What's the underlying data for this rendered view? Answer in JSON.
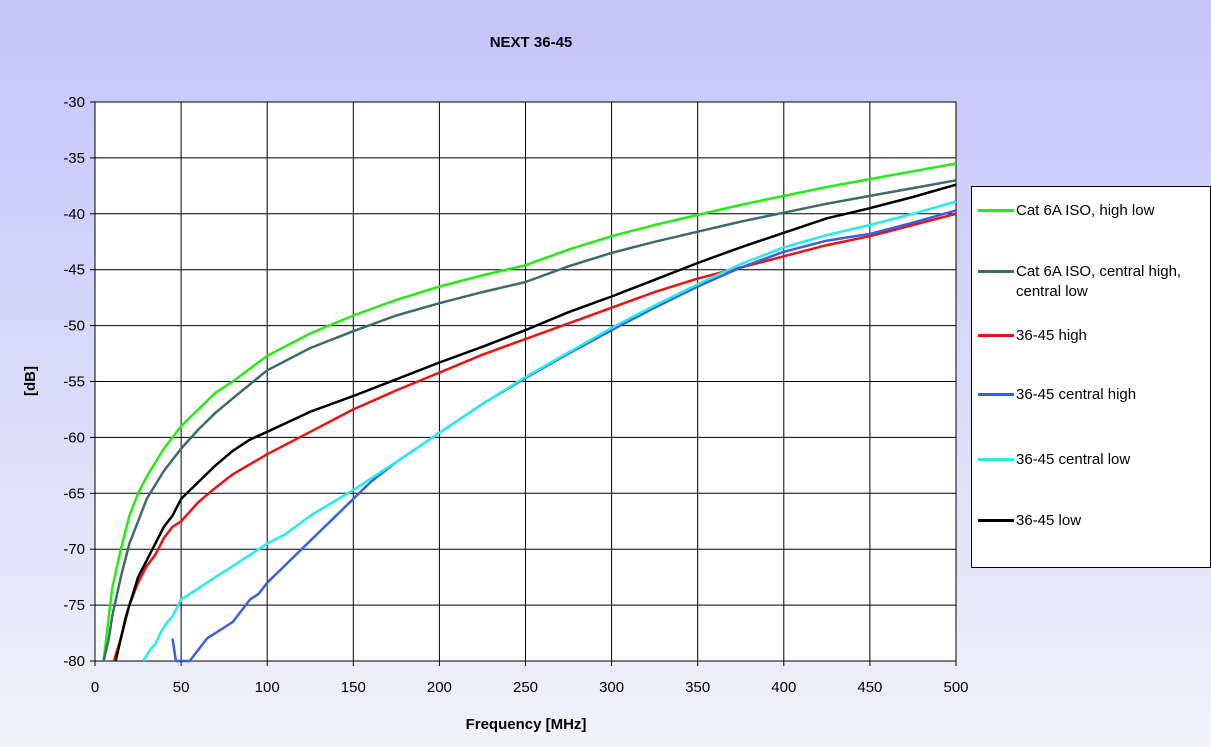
{
  "chart_data": {
    "type": "line",
    "title": "NEXT 36-45",
    "xlabel": "Frequency [MHz]",
    "ylabel": "[dB]",
    "xlim": [
      0,
      500
    ],
    "ylim": [
      -80,
      -30
    ],
    "xticks": [
      0,
      50,
      100,
      150,
      200,
      250,
      300,
      350,
      400,
      450,
      500
    ],
    "yticks": [
      -30,
      -35,
      -40,
      -45,
      -50,
      -55,
      -60,
      -65,
      -70,
      -75,
      -80
    ],
    "grid": true,
    "legend_position": "right",
    "series": [
      {
        "name": "Cat 6A ISO, high low",
        "color": "#22ee11",
        "x": [
          5,
          8,
          10,
          15,
          20,
          25,
          30,
          40,
          50,
          60,
          70,
          80,
          100,
          125,
          150,
          175,
          200,
          225,
          250,
          275,
          300,
          325,
          350,
          375,
          400,
          425,
          450,
          475,
          500
        ],
        "y": [
          -80,
          -76,
          -73.5,
          -70,
          -67,
          -65,
          -63.5,
          -61,
          -59,
          -57.5,
          -56,
          -55,
          -52.7,
          -50.7,
          -49.1,
          -47.7,
          -46.5,
          -45.5,
          -44.6,
          -43.2,
          -42,
          -41,
          -40.1,
          -39.2,
          -38.4,
          -37.6,
          -36.9,
          -36.2,
          -35.5
        ]
      },
      {
        "name": "Cat 6A ISO, central high, central low",
        "color": "#3d6b6b",
        "x": [
          5,
          8,
          10,
          15,
          20,
          25,
          30,
          40,
          50,
          60,
          70,
          80,
          100,
          125,
          150,
          175,
          200,
          225,
          250,
          275,
          300,
          325,
          350,
          375,
          400,
          425,
          450,
          475,
          500
        ],
        "y": [
          -80,
          -78,
          -76,
          -72.5,
          -69.5,
          -67.5,
          -65.5,
          -63,
          -61,
          -59.3,
          -57.8,
          -56.5,
          -54,
          -52,
          -50.5,
          -49.1,
          -48,
          -47,
          -46.1,
          -44.7,
          -43.5,
          -42.5,
          -41.6,
          -40.7,
          -39.9,
          -39.1,
          -38.4,
          -37.7,
          -37
        ]
      },
      {
        "name": "36-45 high",
        "color": "#ee1111",
        "x": [
          11,
          15,
          20,
          25,
          30,
          35,
          40,
          45,
          50,
          60,
          70,
          80,
          100,
          125,
          150,
          175,
          200,
          225,
          250,
          275,
          300,
          325,
          350,
          375,
          400,
          425,
          450,
          475,
          500
        ],
        "y": [
          -80,
          -78,
          -75,
          -73,
          -71.5,
          -70.5,
          -69,
          -68,
          -67.5,
          -65.8,
          -64.5,
          -63.3,
          -61.5,
          -59.5,
          -57.5,
          -55.8,
          -54.2,
          -52.6,
          -51.2,
          -49.8,
          -48.4,
          -47,
          -45.8,
          -44.8,
          -43.8,
          -42.8,
          -42,
          -41,
          -40
        ]
      },
      {
        "name": "36-45 central high",
        "color": "#3a5fe0",
        "x": [
          45,
          47,
          50,
          55,
          60,
          65,
          70,
          75,
          80,
          85,
          90,
          95,
          100,
          110,
          120,
          130,
          140,
          150,
          160,
          175,
          200,
          225,
          250,
          275,
          300,
          325,
          350,
          375,
          400,
          425,
          450,
          475,
          500
        ],
        "y": [
          -78,
          -80,
          -80,
          -80,
          -79,
          -78,
          -77.5,
          -77,
          -76.5,
          -75.5,
          -74.5,
          -74,
          -73,
          -71.5,
          -70,
          -68.5,
          -67,
          -65.5,
          -64,
          -62.2,
          -59.6,
          -57,
          -54.7,
          -52.5,
          -50.4,
          -48.4,
          -46.5,
          -44.8,
          -43.4,
          -42.4,
          -41.8,
          -40.8,
          -39.7
        ]
      },
      {
        "name": "36-45 central low",
        "color": "#22eeee",
        "x": [
          28,
          32,
          35,
          38,
          42,
          45,
          50,
          55,
          60,
          70,
          80,
          90,
          100,
          110,
          125,
          150,
          175,
          200,
          225,
          250,
          275,
          300,
          325,
          350,
          375,
          400,
          425,
          450,
          475,
          500
        ],
        "y": [
          -80,
          -79,
          -78.5,
          -77.5,
          -76.5,
          -76,
          -74.5,
          -74,
          -73.5,
          -72.5,
          -71.5,
          -70.5,
          -69.5,
          -68.7,
          -67,
          -64.7,
          -62.2,
          -59.6,
          -57,
          -54.6,
          -52.4,
          -50.2,
          -48.2,
          -46.3,
          -44.5,
          -43,
          -41.9,
          -41,
          -40,
          -38.9
        ]
      },
      {
        "name": "36-45 low",
        "color": "#000000",
        "x": [
          12,
          15,
          18,
          20,
          25,
          30,
          35,
          40,
          45,
          50,
          60,
          70,
          80,
          90,
          100,
          125,
          150,
          175,
          200,
          225,
          250,
          275,
          300,
          325,
          350,
          375,
          400,
          425,
          450,
          475,
          500
        ],
        "y": [
          -80,
          -78,
          -76,
          -75,
          -72.5,
          -71,
          -69.5,
          -68,
          -67,
          -65.5,
          -64,
          -62.5,
          -61.2,
          -60.2,
          -59.5,
          -57.7,
          -56.3,
          -54.8,
          -53.3,
          -51.9,
          -50.4,
          -48.8,
          -47.4,
          -45.9,
          -44.4,
          -43,
          -41.7,
          -40.4,
          -39.5,
          -38.5,
          -37.4
        ]
      }
    ]
  }
}
